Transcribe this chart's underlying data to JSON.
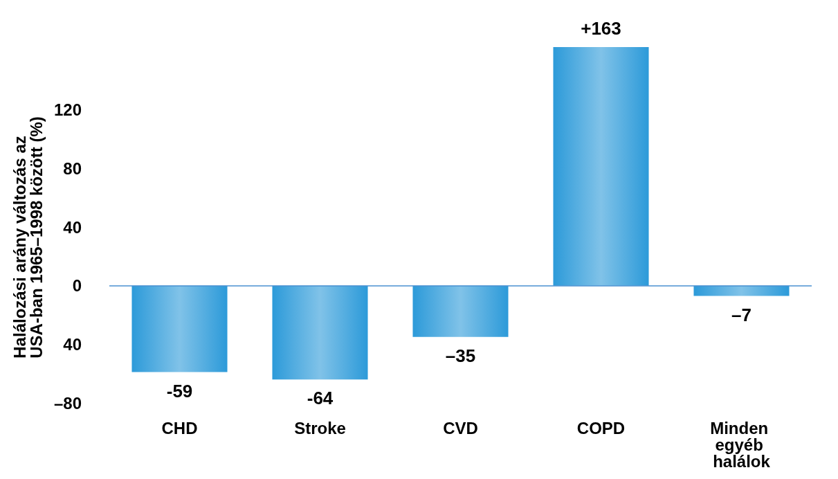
{
  "chart_data": {
    "type": "bar",
    "ylabel": "Halálozási arány változás az USA-ban 1965–1998 között (%)",
    "categories": [
      "CHD",
      "Stroke",
      "CVD",
      "COPD",
      "Minden egyéb halálok"
    ],
    "values": [
      -59,
      -64,
      -35,
      163,
      -7
    ],
    "value_labels": [
      "-59",
      "-64",
      "–35",
      "+163",
      "–7"
    ],
    "color": "#2c9ad9",
    "ylim": [
      -80,
      163
    ],
    "ref_lines": [
      {
        "axis": "y",
        "value": 0,
        "color": "#4a90d0"
      }
    ],
    "yticks": [
      {
        "value": -80,
        "label": "–80"
      },
      {
        "value": -40,
        "label": "40"
      },
      0,
      40,
      80,
      120
    ],
    "grid": false
  }
}
